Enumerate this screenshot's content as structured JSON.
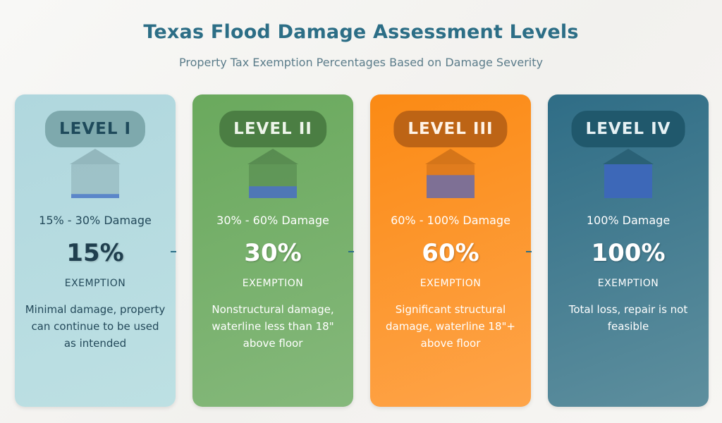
{
  "title": "Texas Flood Damage Assessment Levels",
  "subtitle": "Property Tax Exemption Percentages Based on Damage Severity",
  "levels": [
    {
      "label": "LEVEL I",
      "damage_range": "15% - 30% Damage",
      "exemption_percent": "15%",
      "exemption_label": "EXEMPTION",
      "description": "Minimal damage, property can continue to be used as intended",
      "water_fraction": 0.12,
      "icon": "flooded-house-icon"
    },
    {
      "label": "LEVEL II",
      "damage_range": "30% - 60% Damage",
      "exemption_percent": "30%",
      "exemption_label": "EXEMPTION",
      "description": "Nonstructural damage, waterline less than 18\" above floor",
      "water_fraction": 0.35,
      "icon": "flooded-house-icon"
    },
    {
      "label": "LEVEL III",
      "damage_range": "60% - 100% Damage",
      "exemption_percent": "60%",
      "exemption_label": "EXEMPTION",
      "description": "Significant structural damage, waterline 18\"+ above floor",
      "water_fraction": 0.68,
      "icon": "flooded-house-icon"
    },
    {
      "label": "LEVEL IV",
      "damage_range": "100% Damage",
      "exemption_percent": "100%",
      "exemption_label": "EXEMPTION",
      "description": "Total loss, repair is not feasible",
      "water_fraction": 1.0,
      "icon": "flooded-house-icon"
    }
  ],
  "colors": {
    "title": "#2c6e86",
    "water": "#5b86c9",
    "card_1": "#b7dce1",
    "card_2": "#77b06b",
    "card_3": "#fd952c",
    "card_4": "#447d92"
  }
}
